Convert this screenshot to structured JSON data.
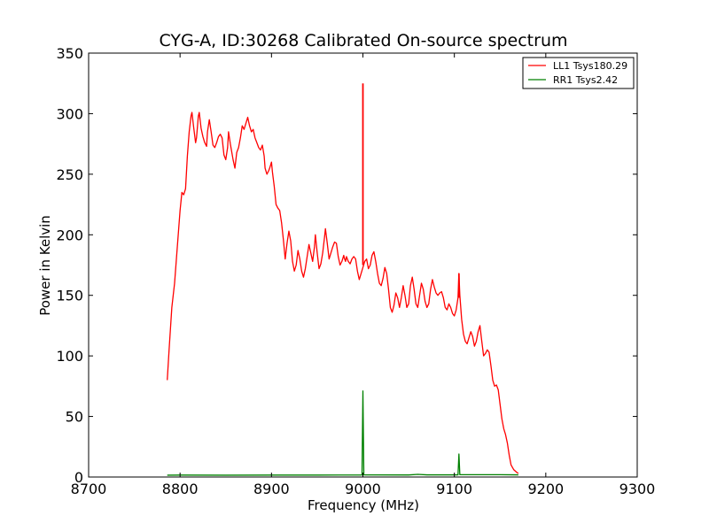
{
  "chart_data": {
    "type": "line",
    "title": "CYG-A, ID:30268 Calibrated On-source spectrum",
    "xlabel": "Frequency (MHz)",
    "ylabel": "Power in Kelvin",
    "xlim": [
      8700,
      9300
    ],
    "ylim": [
      0,
      350
    ],
    "xticks": [
      8700,
      8800,
      8900,
      9000,
      9100,
      9200,
      9300
    ],
    "yticks": [
      0,
      50,
      100,
      150,
      200,
      250,
      300,
      350
    ],
    "xtick_labels": [
      "8700",
      "8800",
      "8900",
      "9000",
      "9100",
      "9200",
      "9300"
    ],
    "ytick_labels": [
      "0",
      "50",
      "100",
      "150",
      "200",
      "250",
      "300",
      "350"
    ],
    "grid": false,
    "legend_position": "top-right",
    "series": [
      {
        "name": "LL1 Tsys180.29",
        "color": "#ff0000",
        "points": [
          [
            8786,
            80
          ],
          [
            8788,
            105
          ],
          [
            8791,
            140
          ],
          [
            8794,
            160
          ],
          [
            8797,
            190
          ],
          [
            8800,
            220
          ],
          [
            8802,
            235
          ],
          [
            8804,
            233
          ],
          [
            8806,
            238
          ],
          [
            8808,
            265
          ],
          [
            8810,
            285
          ],
          [
            8812,
            298
          ],
          [
            8813,
            301
          ],
          [
            8815,
            288
          ],
          [
            8817,
            276
          ],
          [
            8818,
            280
          ],
          [
            8820,
            298
          ],
          [
            8821,
            301
          ],
          [
            8823,
            288
          ],
          [
            8825,
            281
          ],
          [
            8827,
            276
          ],
          [
            8829,
            273
          ],
          [
            8830,
            285
          ],
          [
            8832,
            295
          ],
          [
            8834,
            285
          ],
          [
            8836,
            274
          ],
          [
            8838,
            272
          ],
          [
            8840,
            276
          ],
          [
            8842,
            281
          ],
          [
            8844,
            283
          ],
          [
            8846,
            280
          ],
          [
            8848,
            266
          ],
          [
            8850,
            262
          ],
          [
            8852,
            272
          ],
          [
            8853,
            285
          ],
          [
            8855,
            275
          ],
          [
            8858,
            262
          ],
          [
            8860,
            255
          ],
          [
            8862,
            268
          ],
          [
            8864,
            272
          ],
          [
            8866,
            280
          ],
          [
            8868,
            290
          ],
          [
            8870,
            287
          ],
          [
            8872,
            292
          ],
          [
            8874,
            297
          ],
          [
            8876,
            290
          ],
          [
            8878,
            285
          ],
          [
            8880,
            287
          ],
          [
            8882,
            280
          ],
          [
            8884,
            276
          ],
          [
            8886,
            272
          ],
          [
            8888,
            270
          ],
          [
            8890,
            274
          ],
          [
            8892,
            265
          ],
          [
            8893,
            255
          ],
          [
            8895,
            250
          ],
          [
            8897,
            253
          ],
          [
            8898,
            255
          ],
          [
            8900,
            260
          ],
          [
            8901,
            252
          ],
          [
            8903,
            240
          ],
          [
            8905,
            225
          ],
          [
            8907,
            222
          ],
          [
            8909,
            220
          ],
          [
            8911,
            210
          ],
          [
            8913,
            196
          ],
          [
            8915,
            180
          ],
          [
            8917,
            193
          ],
          [
            8919,
            203
          ],
          [
            8921,
            195
          ],
          [
            8923,
            178
          ],
          [
            8925,
            170
          ],
          [
            8927,
            175
          ],
          [
            8929,
            187
          ],
          [
            8931,
            180
          ],
          [
            8933,
            170
          ],
          [
            8935,
            165
          ],
          [
            8937,
            172
          ],
          [
            8939,
            182
          ],
          [
            8941,
            192
          ],
          [
            8943,
            185
          ],
          [
            8945,
            178
          ],
          [
            8947,
            190
          ],
          [
            8948,
            200
          ],
          [
            8950,
            185
          ],
          [
            8952,
            172
          ],
          [
            8954,
            176
          ],
          [
            8956,
            185
          ],
          [
            8958,
            198
          ],
          [
            8959,
            205
          ],
          [
            8961,
            193
          ],
          [
            8963,
            180
          ],
          [
            8965,
            185
          ],
          [
            8967,
            190
          ],
          [
            8969,
            194
          ],
          [
            8971,
            193
          ],
          [
            8973,
            182
          ],
          [
            8975,
            175
          ],
          [
            8977,
            178
          ],
          [
            8979,
            183
          ],
          [
            8980,
            180
          ],
          [
            8981,
            178
          ],
          [
            8982,
            182
          ],
          [
            8984,
            178
          ],
          [
            8986,
            176
          ],
          [
            8988,
            180
          ],
          [
            8990,
            182
          ],
          [
            8992,
            180
          ],
          [
            8994,
            170
          ],
          [
            8996,
            163
          ],
          [
            8998,
            168
          ],
          [
            9000,
            173
          ],
          [
            9002,
            178
          ],
          [
            9004,
            180
          ],
          [
            9006,
            172
          ],
          [
            9008,
            175
          ],
          [
            9010,
            183
          ],
          [
            9012,
            186
          ],
          [
            9014,
            178
          ],
          [
            9016,
            168
          ],
          [
            9018,
            160
          ],
          [
            9020,
            158
          ],
          [
            9022,
            164
          ],
          [
            9024,
            173
          ],
          [
            9026,
            168
          ],
          [
            9028,
            155
          ],
          [
            9030,
            140
          ],
          [
            9032,
            136
          ],
          [
            9034,
            142
          ],
          [
            9036,
            152
          ],
          [
            9038,
            148
          ],
          [
            9040,
            140
          ],
          [
            9042,
            148
          ],
          [
            9044,
            158
          ],
          [
            9046,
            150
          ],
          [
            9048,
            140
          ],
          [
            9050,
            143
          ],
          [
            9052,
            158
          ],
          [
            9054,
            165
          ],
          [
            9056,
            155
          ],
          [
            9058,
            143
          ],
          [
            9060,
            140
          ],
          [
            9062,
            150
          ],
          [
            9064,
            160
          ],
          [
            9066,
            155
          ],
          [
            9068,
            145
          ],
          [
            9070,
            140
          ],
          [
            9072,
            143
          ],
          [
            9074,
            155
          ],
          [
            9076,
            163
          ],
          [
            9078,
            157
          ],
          [
            9080,
            152
          ],
          [
            9082,
            150
          ],
          [
            9084,
            152
          ],
          [
            9086,
            153
          ],
          [
            9088,
            148
          ],
          [
            9090,
            140
          ],
          [
            9092,
            138
          ],
          [
            9094,
            143
          ],
          [
            9096,
            140
          ],
          [
            9098,
            135
          ],
          [
            9100,
            133
          ],
          [
            9102,
            138
          ],
          [
            9104,
            148
          ],
          [
            9105,
            168
          ],
          [
            9106,
            150
          ],
          [
            9108,
            130
          ],
          [
            9110,
            118
          ],
          [
            9112,
            112
          ],
          [
            9114,
            110
          ],
          [
            9116,
            115
          ],
          [
            9118,
            120
          ],
          [
            9120,
            116
          ],
          [
            9122,
            108
          ],
          [
            9124,
            112
          ],
          [
            9126,
            120
          ],
          [
            9128,
            125
          ],
          [
            9130,
            112
          ],
          [
            9132,
            100
          ],
          [
            9134,
            102
          ],
          [
            9136,
            105
          ],
          [
            9138,
            103
          ],
          [
            9140,
            92
          ],
          [
            9142,
            80
          ],
          [
            9144,
            75
          ],
          [
            9146,
            76
          ],
          [
            9148,
            72
          ],
          [
            9150,
            60
          ],
          [
            9152,
            48
          ],
          [
            9154,
            40
          ],
          [
            9156,
            35
          ],
          [
            9158,
            28
          ],
          [
            9160,
            18
          ],
          [
            9162,
            10
          ],
          [
            9165,
            6
          ],
          [
            9168,
            4
          ],
          [
            9170,
            3
          ]
        ],
        "spikes": [
          {
            "x": 9000,
            "y": 325,
            "base": 175
          },
          {
            "x": 9105,
            "y": 168,
            "base": 148
          }
        ]
      },
      {
        "name": "RR1 Tsys2.42",
        "color": "#008000",
        "points": [
          [
            8786,
            1.5
          ],
          [
            8800,
            1.6
          ],
          [
            8850,
            1.5
          ],
          [
            8900,
            1.6
          ],
          [
            8950,
            1.6
          ],
          [
            8999,
            1.7
          ],
          [
            9000,
            71
          ],
          [
            9001,
            1.8
          ],
          [
            9050,
            1.7
          ],
          [
            9060,
            2.2
          ],
          [
            9070,
            1.8
          ],
          [
            9104,
            1.8
          ],
          [
            9105,
            19
          ],
          [
            9106,
            1.9
          ],
          [
            9150,
            1.9
          ],
          [
            9170,
            1.8
          ]
        ]
      }
    ]
  }
}
